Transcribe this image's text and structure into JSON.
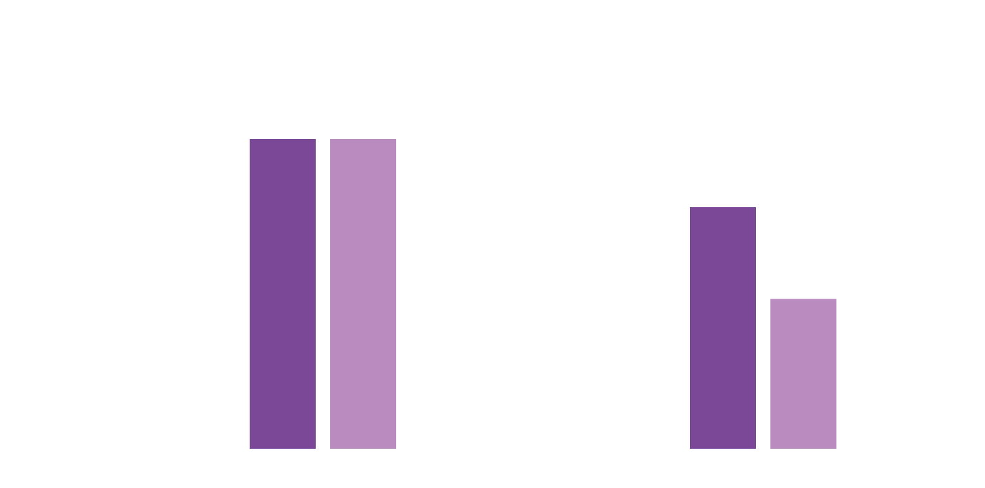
{
  "chart_data": {
    "type": "bar",
    "categories": [
      null,
      null
    ],
    "series": [
      {
        "color": "#7b4897",
        "values": [
          100,
          78
        ]
      },
      {
        "color": "#b98bbf",
        "values": [
          100,
          48.4
        ]
      }
    ],
    "ylim": [
      0,
      100
    ]
  }
}
